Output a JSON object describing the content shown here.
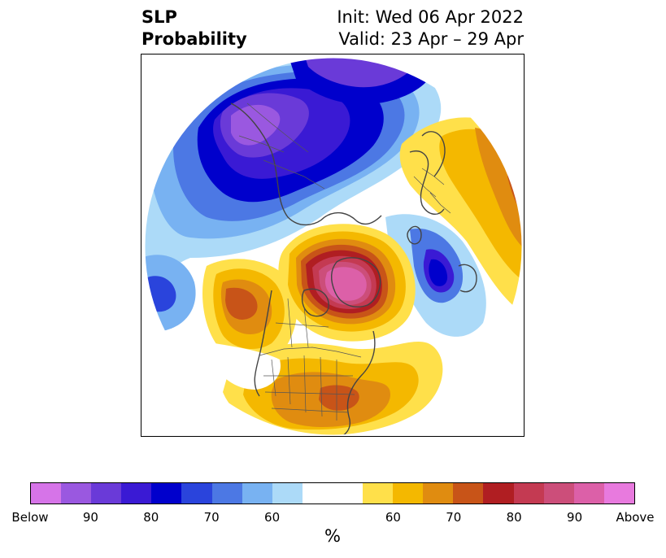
{
  "header": {
    "title_line1": "SLP",
    "title_line2": "Probability",
    "init": "Init: Wed 06 Apr 2022",
    "valid": "Valid: 23 Apr – 29 Apr"
  },
  "legend": {
    "unit": "%",
    "tick_labels": [
      "Below",
      "90",
      "80",
      "70",
      "60",
      "60",
      "70",
      "80",
      "90",
      "Above"
    ],
    "colors": [
      "#d674e8",
      "#9a58e0",
      "#6a3ad8",
      "#3a1ad4",
      "#0000cc",
      "#2a44dc",
      "#4c78e4",
      "#78b2f2",
      "#acdaf8",
      "#ffffff",
      "#ffe04a",
      "#f4b800",
      "#e08c10",
      "#c85418",
      "#b01e22",
      "#c43a52",
      "#cc4e7a",
      "#dc60a8",
      "#e87ade"
    ]
  },
  "map": {
    "projection": "north-polar-stereographic",
    "background_fill": "#ffffff",
    "coastline_color": "#444444",
    "border_color": "#555555"
  }
}
